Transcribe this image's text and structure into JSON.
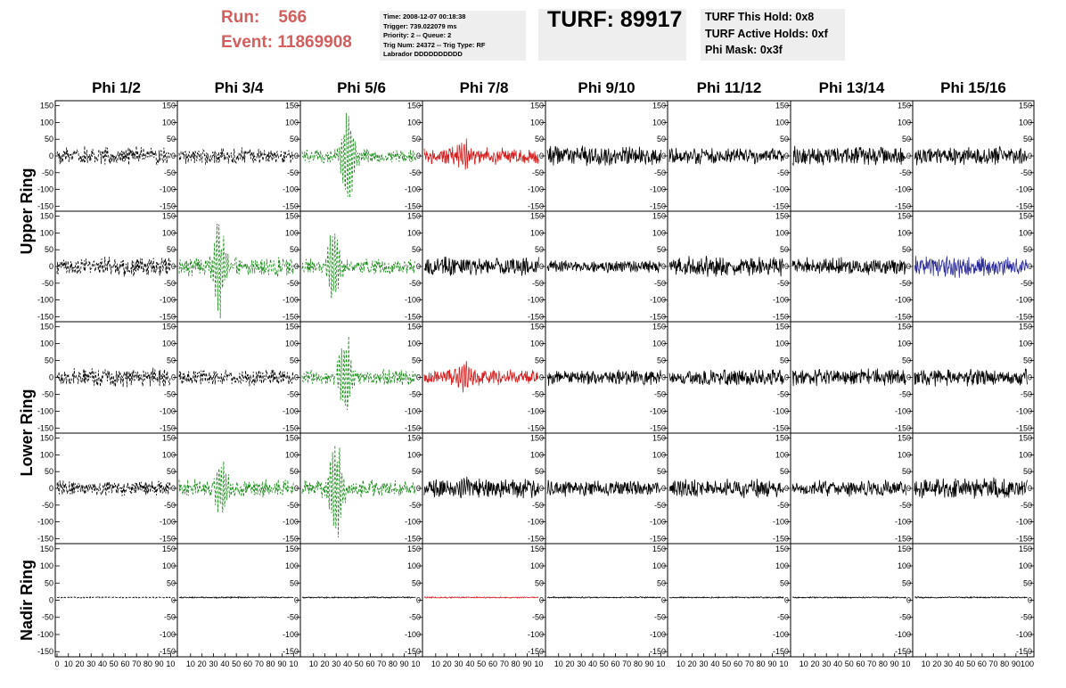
{
  "header": {
    "run_label": "Run:",
    "run_value": "566",
    "event_label": "Event:",
    "event_value": "11869908",
    "info_lines": [
      "Time: 2008-12-07 00:18:38",
      "Trigger: 739.022079 ms",
      "Priority: 2 -- Queue: 2",
      "Trig Num: 24372 -- Trig Type: RF",
      "Labrador DDDDDDDDDD"
    ],
    "turf_title": "TURF: 89917",
    "turf_lines": [
      "TURF This Hold: 0x8",
      "TURF Active Holds: 0xf",
      "Phi Mask: 0x3f"
    ]
  },
  "colors": {
    "header_red": "#d35e5e",
    "box_gray": "#eeeeee",
    "trace_black": "#000000",
    "trace_green": "#1a8a1a",
    "trace_red": "#d42020",
    "trace_blue": "#2b2b9a"
  },
  "chart_data": {
    "type": "line",
    "columns": [
      "Phi 1/2",
      "Phi 3/4",
      "Phi 5/6",
      "Phi 7/8",
      "Phi 9/10",
      "Phi 11/12",
      "Phi 13/14",
      "Phi 15/16"
    ],
    "ring_labels": [
      "Upper Ring",
      "Lower Ring",
      "Nadir Ring"
    ],
    "ylim": [
      -165,
      165
    ],
    "y_ticks": [
      -150,
      -100,
      -50,
      0,
      50,
      100,
      150
    ],
    "y_tick_labels": [
      "-150",
      "-100",
      "-50",
      "0",
      "50",
      "100",
      "150"
    ],
    "xlim": [
      0,
      100
    ],
    "x_tick_labels": [
      "0",
      "10",
      "20",
      "30",
      "40",
      "50",
      "60",
      "70",
      "80",
      "90",
      "100"
    ],
    "x_tick_labels_per_column": [
      [
        "0",
        "10",
        "20",
        "30",
        "40",
        "50",
        "60",
        "70",
        "80",
        "90",
        "10"
      ],
      [
        "10",
        "20",
        "30",
        "40",
        "50",
        "60",
        "70",
        "80",
        "90",
        "10"
      ],
      [
        "10",
        "20",
        "30",
        "40",
        "50",
        "60",
        "70",
        "80",
        "90",
        "10"
      ],
      [
        "10",
        "20",
        "30",
        "40",
        "50",
        "60",
        "70",
        "80",
        "90",
        "10"
      ],
      [
        "10",
        "20",
        "30",
        "40",
        "50",
        "60",
        "70",
        "80",
        "90",
        "10"
      ],
      [
        "10",
        "20",
        "30",
        "40",
        "50",
        "60",
        "70",
        "80",
        "90",
        "10"
      ],
      [
        "10",
        "20",
        "30",
        "40",
        "50",
        "60",
        "70",
        "80",
        "90",
        "10"
      ],
      [
        "10",
        "20",
        "30",
        "40",
        "50",
        "60",
        "70",
        "80",
        "90",
        "100"
      ]
    ],
    "row_groups": [
      "Upper Ring",
      "Upper Ring",
      "Lower Ring",
      "Lower Ring",
      "Nadir Ring"
    ],
    "panels": [
      [
        {
          "color": "black",
          "style": "dashed",
          "amp": 28,
          "burst": 0,
          "bc": 50
        },
        {
          "color": "black",
          "style": "dashed",
          "amp": 24,
          "burst": 0,
          "bc": 50
        },
        {
          "color": "green",
          "style": "dashed",
          "amp": 22,
          "burst": 140,
          "bc": 40
        },
        {
          "color": "red",
          "style": "solid",
          "amp": 26,
          "burst": 40,
          "bc": 35
        },
        {
          "color": "black",
          "style": "solid",
          "amp": 30,
          "burst": 0,
          "bc": 50
        },
        {
          "color": "black",
          "style": "solid",
          "amp": 24,
          "burst": 0,
          "bc": 50
        },
        {
          "color": "black",
          "style": "solid",
          "amp": 30,
          "burst": 0,
          "bc": 50
        },
        {
          "color": "black",
          "style": "solid",
          "amp": 28,
          "burst": 0,
          "bc": 50
        }
      ],
      [
        {
          "color": "black",
          "style": "dashed",
          "amp": 30,
          "burst": 0,
          "bc": 50
        },
        {
          "color": "green",
          "style": "dashed",
          "amp": 30,
          "burst": 140,
          "bc": 35
        },
        {
          "color": "green",
          "style": "dashed",
          "amp": 24,
          "burst": 120,
          "bc": 28
        },
        {
          "color": "black",
          "style": "solid",
          "amp": 28,
          "burst": 0,
          "bc": 50
        },
        {
          "color": "black",
          "style": "solid",
          "amp": 20,
          "burst": 0,
          "bc": 50
        },
        {
          "color": "black",
          "style": "solid",
          "amp": 30,
          "burst": 0,
          "bc": 50
        },
        {
          "color": "black",
          "style": "solid",
          "amp": 26,
          "burst": 0,
          "bc": 50
        },
        {
          "color": "blue",
          "style": "solid",
          "amp": 32,
          "burst": 20,
          "bc": 35
        }
      ],
      [
        {
          "color": "black",
          "style": "dashed",
          "amp": 28,
          "burst": 0,
          "bc": 50
        },
        {
          "color": "black",
          "style": "dashed",
          "amp": 24,
          "burst": 0,
          "bc": 50
        },
        {
          "color": "green",
          "style": "dashed",
          "amp": 24,
          "burst": 140,
          "bc": 38
        },
        {
          "color": "red",
          "style": "solid",
          "amp": 24,
          "burst": 50,
          "bc": 35
        },
        {
          "color": "black",
          "style": "solid",
          "amp": 24,
          "burst": 0,
          "bc": 50
        },
        {
          "color": "black",
          "style": "solid",
          "amp": 24,
          "burst": 0,
          "bc": 50
        },
        {
          "color": "black",
          "style": "solid",
          "amp": 26,
          "burst": 0,
          "bc": 50
        },
        {
          "color": "black",
          "style": "solid",
          "amp": 26,
          "burst": 0,
          "bc": 50
        }
      ],
      [
        {
          "color": "black",
          "style": "dashed",
          "amp": 24,
          "burst": 0,
          "bc": 50
        },
        {
          "color": "green",
          "style": "dashed",
          "amp": 28,
          "burst": 80,
          "bc": 38
        },
        {
          "color": "green",
          "style": "dashed",
          "amp": 26,
          "burst": 150,
          "bc": 30
        },
        {
          "color": "black",
          "style": "solid",
          "amp": 30,
          "burst": 20,
          "bc": 35
        },
        {
          "color": "black",
          "style": "solid",
          "amp": 24,
          "burst": 0,
          "bc": 50
        },
        {
          "color": "black",
          "style": "solid",
          "amp": 28,
          "burst": 0,
          "bc": 50
        },
        {
          "color": "black",
          "style": "solid",
          "amp": 24,
          "burst": 0,
          "bc": 50
        },
        {
          "color": "black",
          "style": "solid",
          "amp": 32,
          "burst": 0,
          "bc": 50
        }
      ],
      [
        {
          "color": "black",
          "style": "dashed",
          "amp": 2,
          "burst": 0,
          "bc": 50
        },
        {
          "color": "black",
          "style": "solid",
          "amp": 2,
          "burst": 0,
          "bc": 50
        },
        {
          "color": "black",
          "style": "solid",
          "amp": 2,
          "burst": 0,
          "bc": 50
        },
        {
          "color": "red",
          "style": "solid",
          "amp": 2,
          "burst": 0,
          "bc": 50
        },
        {
          "color": "black",
          "style": "solid",
          "amp": 2,
          "burst": 0,
          "bc": 50
        },
        {
          "color": "black",
          "style": "solid",
          "amp": 2,
          "burst": 0,
          "bc": 50
        },
        {
          "color": "black",
          "style": "solid",
          "amp": 2,
          "burst": 0,
          "bc": 50
        },
        {
          "color": "black",
          "style": "solid",
          "amp": 2,
          "burst": 0,
          "bc": 50
        }
      ]
    ],
    "nadir_baseline": 8,
    "grid": false
  }
}
